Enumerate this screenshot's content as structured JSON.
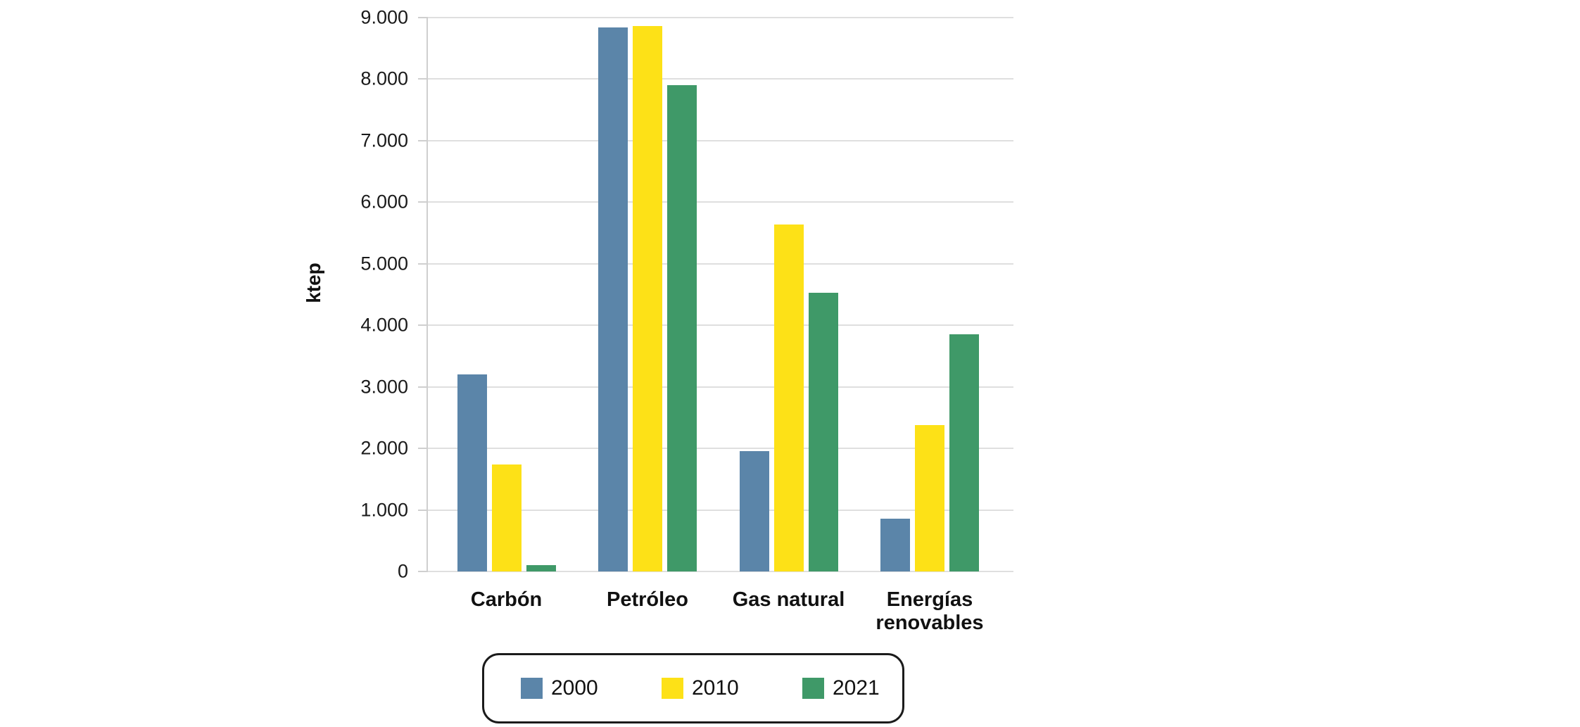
{
  "chart_data": {
    "type": "bar",
    "title": "",
    "xlabel": "",
    "ylabel": "ktep",
    "categories": [
      "Carbón",
      "Petróleo",
      "Gas natural",
      "Energías renovables"
    ],
    "series": [
      {
        "name": "2000",
        "color": "#5b85a9",
        "values": [
          3200,
          8840,
          1950,
          860
        ]
      },
      {
        "name": "2010",
        "color": "#fde117",
        "values": [
          1740,
          8860,
          5640,
          2380
        ]
      },
      {
        "name": "2021",
        "color": "#3f9968",
        "values": [
          100,
          7900,
          4530,
          3850
        ]
      }
    ],
    "ylim": [
      0,
      9000
    ],
    "ytick_step": 1000,
    "ytick_labels": [
      "0",
      "1.000",
      "2.000",
      "3.000",
      "4.000",
      "5.000",
      "6.000",
      "7.000",
      "8.000",
      "9.000"
    ],
    "grid": "horizontal-only",
    "legend_position": "bottom"
  }
}
